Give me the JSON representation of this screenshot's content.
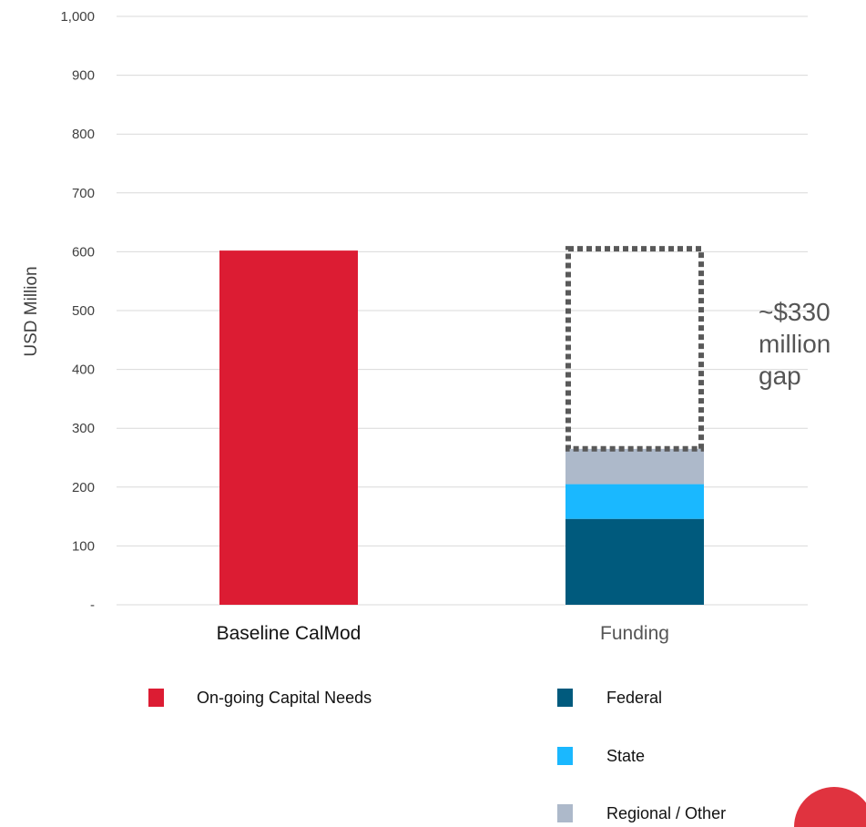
{
  "chart_data": {
    "type": "bar",
    "stacked": true,
    "categories": [
      "Baseline CalMod",
      "Funding"
    ],
    "series": [
      {
        "name": "On-going Capital Needs",
        "values": [
          602,
          0
        ],
        "color": "#dc1c33"
      },
      {
        "name": "Federal",
        "values": [
          0,
          146
        ],
        "color": "#005a7d"
      },
      {
        "name": "State",
        "values": [
          0,
          59
        ],
        "color": "#1ab8ff"
      },
      {
        "name": "Regional / Other",
        "values": [
          0,
          60
        ],
        "color": "#adb9ca"
      }
    ],
    "gap": {
      "category": "Funding",
      "from": 265,
      "to": 605,
      "label_lines": [
        "~$330",
        "million",
        "gap"
      ]
    },
    "ylabel": "USD Million",
    "ylim": [
      0,
      1000
    ],
    "yticks": [
      0,
      100,
      200,
      300,
      400,
      500,
      600,
      700,
      800,
      900,
      1000
    ],
    "ytick_labels": [
      "-",
      "100",
      "200",
      "300",
      "400",
      "500",
      "600",
      "700",
      "800",
      "900",
      "1,000"
    ],
    "grid": true,
    "legend_position": "bottom"
  },
  "colors": {
    "grid": "#d9d9d9",
    "gap_outline": "#595959",
    "corner_circle": "#e0333f"
  }
}
